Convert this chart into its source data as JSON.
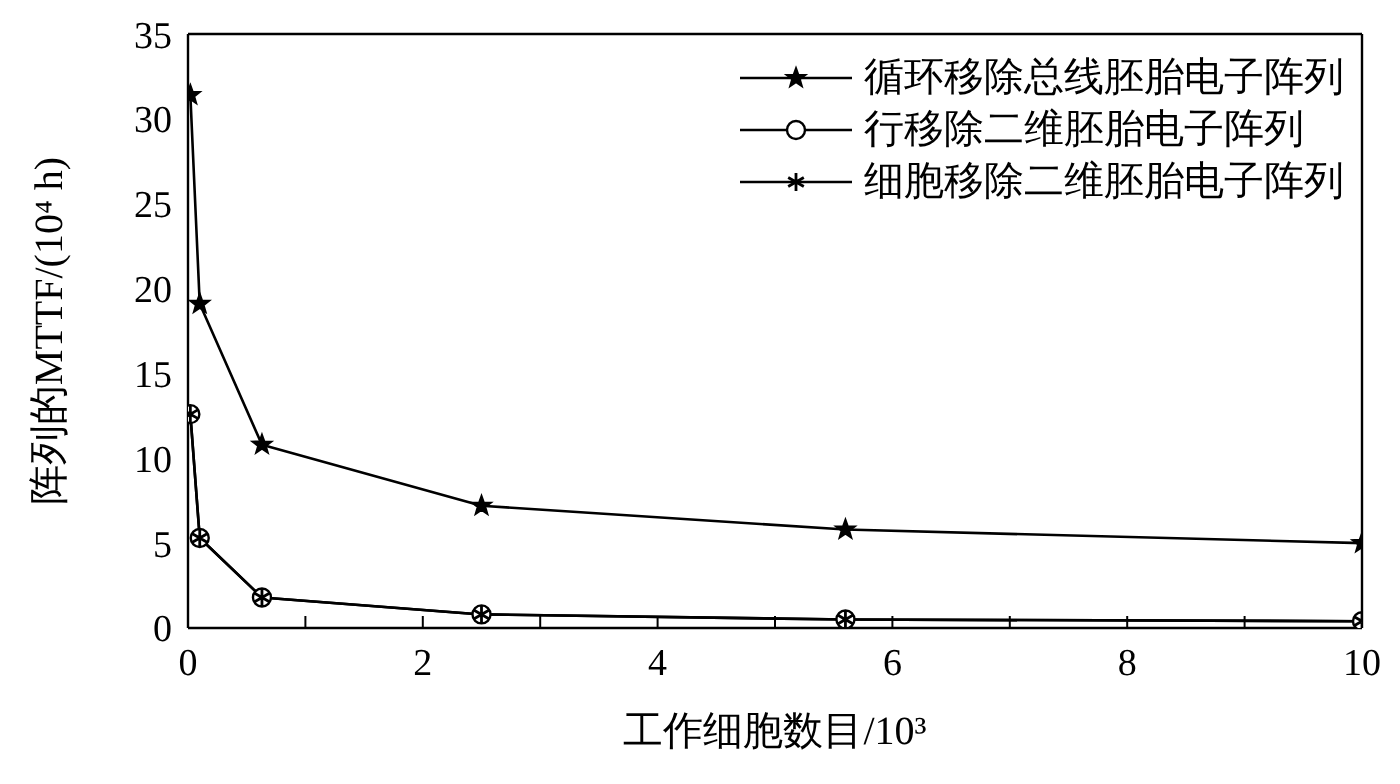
{
  "chart_data": {
    "type": "line",
    "xlabel": "工作细胞数目/10³",
    "ylabel": "阵列的MTTF/(10⁴ h)",
    "x": [
      0.02,
      0.1,
      0.63,
      2.5,
      5.6,
      10
    ],
    "series": [
      {
        "name": "循环移除总线胚胎电子阵列",
        "color": "#000000",
        "marker": "star",
        "values": [
          31.4,
          19.1,
          10.8,
          7.2,
          5.8,
          5.0
        ]
      },
      {
        "name": "行移除二维胚胎电子阵列",
        "color": "#000000",
        "marker": "circle",
        "values": [
          12.6,
          5.3,
          1.8,
          0.8,
          0.5,
          0.4
        ]
      },
      {
        "name": "细胞移除二维胚胎电子阵列",
        "color": "#000000",
        "marker": "cross",
        "values": [
          12.6,
          5.3,
          1.8,
          0.8,
          0.5,
          0.4
        ]
      }
    ],
    "xlim": [
      0,
      10
    ],
    "xticks": [
      0,
      {
        "value": 1,
        "label": null
      },
      2,
      {
        "value": 3,
        "label": null
      },
      4,
      {
        "value": 5,
        "label": null
      },
      6,
      {
        "value": 7,
        "label": null
      },
      8,
      {
        "value": 9,
        "label": null
      },
      10
    ],
    "ylim": [
      0,
      35
    ],
    "yticks": [
      0,
      5,
      10,
      15,
      20,
      25,
      30,
      35
    ],
    "grid": false,
    "legend": "top right",
    "line_style": "solid"
  }
}
